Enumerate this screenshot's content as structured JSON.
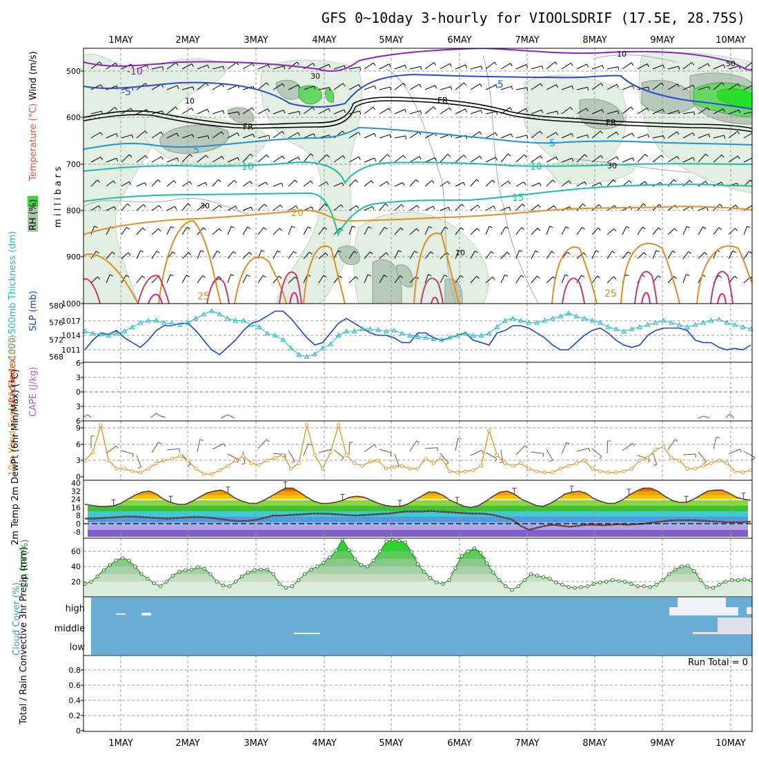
{
  "title": "GFS 0~10day 3-hourly for VIOOLSDRIF (17.5E, 28.75S)",
  "dates": [
    "1MAY",
    "2MAY",
    "3MAY",
    "4MAY",
    "5MAY",
    "6MAY",
    "7MAY",
    "8MAY",
    "9MAY",
    "10MAY"
  ],
  "colors": {
    "wind_rh_green": "#3cd23c",
    "temp_contour_cool": "#1f8fe0",
    "temp_contour_teal": "#17c0a0",
    "temp_contour_warm": "#e09020",
    "slp_line": "#1840d0",
    "thickness_line": "#20b8c0",
    "wind_speed_line": "#e8962a",
    "dewpt_line": "#c05050",
    "cloud_fill": "#6aaed6",
    "li_line": "#e02020"
  },
  "chart_data": [
    {
      "panel": "upper-air",
      "type": "contour",
      "ylabel_parts": [
        "Wind (m/s)",
        "Temperature (°C)",
        "RH (%)"
      ],
      "yunit": "m i l l i b a r s",
      "yticks": [
        "500",
        "600",
        "700",
        "800",
        "900",
        "1000"
      ],
      "ylim": [
        450,
        1000
      ],
      "contour_labels": [
        "-10",
        "-5",
        "-5",
        "FR",
        "FR",
        "FR",
        "-5",
        "5",
        "5",
        "10",
        "10",
        "15",
        "20",
        "25",
        "25",
        "30",
        "30",
        "30",
        "10",
        "10",
        "10",
        "50"
      ]
    },
    {
      "panel": "slp-thickness",
      "type": "line",
      "ylabel": "1000-500mb Thickness (dm)",
      "ylabel2": "SLP (mb)",
      "yticks_left": [
        "580",
        "576",
        "572",
        "568"
      ],
      "yticks_right": [
        "1017",
        "1014",
        "1011"
      ],
      "ylim_left": [
        566,
        580
      ],
      "ylim_right": [
        1008,
        1020
      ],
      "series": [
        {
          "name": "SLP",
          "axis": "right",
          "values": [
            1011,
            1013,
            1014.5,
            1014.2,
            1015,
            1013.5,
            1012.5,
            1011.5,
            1013,
            1015,
            1016,
            1016,
            1016.5,
            1016.5,
            1015,
            1013,
            1011,
            1010,
            1011.5,
            1013,
            1015,
            1016.5,
            1017,
            1018,
            1019,
            1019,
            1017.5,
            1015.5,
            1013.5,
            1012,
            1012.5,
            1014.5,
            1016.5,
            1017.5,
            1016.5,
            1015.5,
            1014.5,
            1014,
            1014,
            1013.5,
            1012.5,
            1012.5,
            1014.5,
            1014.5,
            1013.5,
            1013,
            1013.5,
            1014,
            1014.5,
            1013,
            1012.5,
            1012,
            1014.5,
            1015,
            1016,
            1016,
            1015.5,
            1014.5,
            1013.5,
            1012,
            1011,
            1011,
            1012.5,
            1014,
            1015,
            1015.5,
            1014.5,
            1013,
            1012,
            1011.5,
            1012,
            1014,
            1015,
            1015.5,
            1015.5,
            1015.5,
            1015,
            1013,
            1012.5,
            1012.5,
            1011.5,
            1011,
            1011.3,
            1011,
            1012
          ]
        },
        {
          "name": "Thickness",
          "axis": "left",
          "values": [
            574,
            573.5,
            573.3,
            573,
            573.5,
            574,
            575,
            576,
            576.5,
            576.5,
            576,
            575.8,
            575.5,
            576,
            577,
            578,
            578.8,
            578,
            577,
            576.5,
            576.5,
            575.5,
            575,
            573.5,
            573,
            572,
            570,
            568.5,
            568,
            568.6,
            570,
            571,
            573,
            574,
            574,
            574.5,
            574.5,
            574.3,
            574,
            574.2,
            573.5,
            573,
            572.7,
            572.5,
            572.2,
            572,
            572.5,
            573,
            573.5,
            573,
            573,
            573.5,
            575,
            576.5,
            577,
            576.5,
            576,
            576,
            576.5,
            577,
            577.5,
            578.2,
            577.5,
            577,
            576.5,
            576,
            575,
            574.5,
            574,
            574.5,
            575,
            575.5,
            576,
            576.5,
            576,
            575.5,
            575,
            575.5,
            576,
            576.5,
            576.8,
            576,
            575.5,
            575,
            574.5
          ]
        }
      ]
    },
    {
      "panel": "lifted-index-cape",
      "type": "line",
      "ylabel": "Lifted Index",
      "ylabel2": "CAPE (J/kg)",
      "yticks": [
        "6",
        "3",
        "0",
        "3",
        "6"
      ],
      "ylim": [
        6,
        -6
      ],
      "zero_line_label": "0"
    },
    {
      "panel": "wind-10m",
      "type": "line",
      "ylabel": "10m Wind Speed & Barbs (m/s)",
      "yticks": [
        "9",
        "6",
        "3",
        "0"
      ],
      "ylim": [
        0,
        10
      ],
      "series": [
        {
          "name": "Speed",
          "values": [
            3,
            4.5,
            9.5,
            3,
            1.5,
            1.5,
            1,
            0.8,
            1.5,
            2.5,
            3,
            3.3,
            3.8,
            3,
            1.5,
            0.5,
            0.5,
            1.2,
            2,
            3,
            3.8,
            2.5,
            2.2,
            3,
            3.5,
            4,
            1.5,
            2.5,
            9.5,
            4,
            1.5,
            4.5,
            9.5,
            4,
            2.5,
            2,
            2.8,
            3,
            1.5,
            1.8,
            2,
            1.5,
            1.5,
            3.3,
            2.5,
            3.5,
            1,
            0.8,
            1,
            1.2,
            2,
            8.5,
            4,
            2.5,
            2,
            2.5,
            1.5,
            1,
            0.8,
            0.8,
            1.5,
            2,
            2.5,
            3,
            1.5,
            1,
            0.8,
            0.8,
            1,
            1.5,
            3,
            3.5,
            5,
            5.5,
            3.5,
            3,
            1.5,
            1.5,
            2,
            2.5,
            3,
            2.5,
            1,
            0.8,
            1.2
          ]
        }
      ]
    },
    {
      "panel": "temp-2m",
      "type": "area",
      "ylabel": "2m Temp 2m DewPt (6hr Min/Max) (°C)",
      "yticks": [
        "40",
        "32",
        "24",
        "16",
        "8",
        "0",
        "-8"
      ],
      "ylim": [
        -10,
        40
      ],
      "series": [
        {
          "name": "Temp",
          "values": [
            19,
            18,
            17,
            17,
            17.5,
            20,
            24,
            28,
            31,
            32,
            29,
            24,
            21,
            19,
            19,
            22,
            26,
            30,
            32,
            33,
            30,
            25,
            22,
            20,
            20,
            23,
            27,
            31,
            35,
            35,
            31,
            26,
            22,
            20,
            20,
            21,
            23,
            26,
            27,
            26,
            23,
            20,
            18,
            17,
            17,
            19,
            23,
            27,
            31,
            31,
            28,
            23,
            20,
            17,
            16,
            18,
            22,
            27,
            31,
            32,
            29,
            24,
            21,
            18,
            17,
            20,
            24,
            29,
            31,
            32,
            30,
            25,
            22,
            20,
            20,
            23,
            28,
            32,
            35,
            35,
            32,
            27,
            23,
            21,
            21,
            24,
            28,
            32,
            33,
            33,
            30,
            26,
            24,
            23
          ]
        },
        {
          "name": "DewPt",
          "values": [
            5,
            5,
            5.5,
            6,
            6.5,
            7,
            7,
            6.5,
            6,
            5.5,
            5,
            5.5,
            6,
            6.5,
            6.5,
            6,
            5,
            4,
            3,
            2.5,
            3,
            4,
            6,
            8,
            8,
            8.5,
            9,
            9.5,
            10,
            10,
            9.5,
            9,
            8.5,
            8,
            8.5,
            9,
            9.5,
            10,
            11,
            12,
            12,
            12,
            12.5,
            12,
            11.5,
            11,
            10.5,
            10,
            10,
            9.5,
            8,
            6,
            4,
            -2,
            -6,
            -4,
            -2,
            -1,
            -2,
            -3,
            -2,
            -1,
            -1,
            -1.5,
            -1,
            -0.5,
            -1,
            -0.5,
            0,
            1,
            2,
            3,
            3.5,
            3.5,
            3.5,
            3,
            2.5,
            2,
            1.5,
            1.5,
            1.5,
            2
          ]
        }
      ]
    },
    {
      "panel": "rh-2m",
      "type": "area",
      "ylabel": "2m RH (%)",
      "yticks": [
        "60",
        "40",
        "20"
      ],
      "ylim": [
        0,
        80
      ],
      "series": [
        {
          "name": "RH",
          "values": [
            17,
            20,
            27,
            35,
            42,
            48,
            51,
            48,
            40,
            30,
            24,
            18,
            14,
            20,
            28,
            33,
            35,
            36,
            39,
            37,
            30,
            20,
            15,
            14,
            20,
            27,
            32,
            35,
            36,
            36,
            30,
            17,
            12,
            14,
            22,
            30,
            36,
            40,
            45,
            52,
            61,
            76,
            62,
            50,
            42,
            40,
            48,
            60,
            73,
            75,
            74,
            72,
            59,
            43,
            33,
            25,
            19,
            17,
            22,
            38,
            54,
            60,
            64,
            58,
            44,
            32,
            22,
            14,
            9,
            14,
            22,
            30,
            28,
            26,
            24,
            19,
            16,
            13,
            12,
            13,
            14,
            17,
            19,
            20,
            22,
            21,
            20,
            17,
            14,
            14,
            13,
            16,
            22,
            30,
            36,
            40,
            41,
            34,
            22,
            13,
            12,
            16,
            20,
            22,
            22,
            23,
            22
          ]
        }
      ]
    },
    {
      "panel": "cloud-cover",
      "type": "heatmap",
      "ylabel": "Cloud Cover (%)",
      "yticks": [
        "high",
        "middle",
        "low"
      ]
    },
    {
      "panel": "precip",
      "type": "bar",
      "ylabel": "Total / Rain Convective 3hr Precip (mm)",
      "yticks": [
        "0.8",
        "0.6",
        "0.4",
        "0.2",
        "0"
      ],
      "ylim": [
        0,
        1
      ],
      "run_total": "Run Total = 0",
      "values": []
    }
  ]
}
